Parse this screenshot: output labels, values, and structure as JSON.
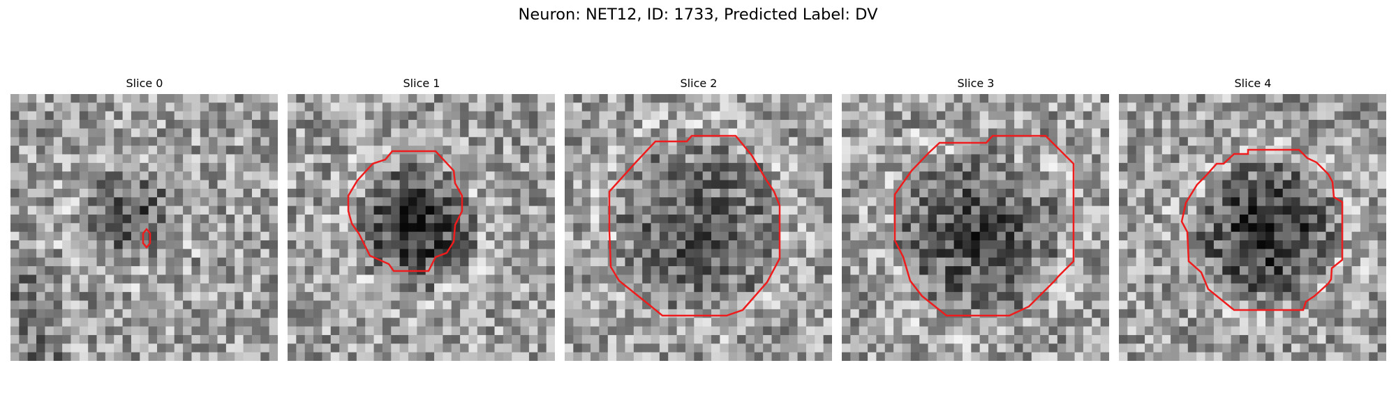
{
  "figure": {
    "suptitle": "Neuron: NET12, ID: 1733, Predicted Label: DV",
    "colors": {
      "contour": "#ee1c1c",
      "background": "#ffffff"
    },
    "image_content": "grayscale noisy microscopy patches with red ROI contours",
    "slices": [
      {
        "title": "Slice 0"
      },
      {
        "title": "Slice 1"
      },
      {
        "title": "Slice 2"
      },
      {
        "title": "Slice 3"
      },
      {
        "title": "Slice 4"
      }
    ]
  }
}
